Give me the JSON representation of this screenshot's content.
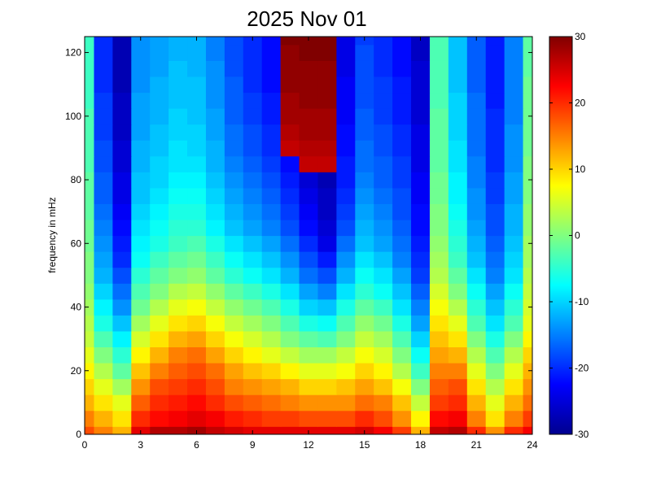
{
  "chart_data": {
    "type": "heatmap",
    "title": "2025 Nov 01",
    "xlabel": "",
    "ylabel": "frequency in mHz",
    "xlim": [
      0,
      24
    ],
    "ylim": [
      0,
      125
    ],
    "x_ticks": [
      "0",
      "3",
      "6",
      "9",
      "12",
      "15",
      "18",
      "21",
      "24"
    ],
    "x_tick_values": [
      0,
      3,
      6,
      9,
      12,
      15,
      18,
      21,
      24
    ],
    "y_ticks": [
      "0",
      "20",
      "40",
      "60",
      "80",
      "100",
      "120"
    ],
    "y_tick_values": [
      0,
      20,
      40,
      60,
      80,
      100,
      120
    ],
    "colorbar": {
      "colormap": "jet",
      "range": [
        -30,
        30
      ],
      "ticks": [
        "30",
        "20",
        "10",
        "0",
        "-10",
        "-20",
        "-30"
      ],
      "tick_values": [
        30,
        20,
        10,
        0,
        -10,
        -20,
        -30
      ]
    },
    "x": [
      0,
      1,
      2,
      3,
      4,
      5,
      6,
      7,
      8,
      9,
      10,
      11,
      12,
      13,
      14,
      15,
      16,
      17,
      18,
      19,
      20,
      21,
      22,
      23,
      24
    ],
    "y": [
      0,
      5,
      10,
      15,
      20,
      25,
      30,
      35,
      40,
      45,
      50,
      55,
      60,
      65,
      70,
      75,
      80,
      85,
      90,
      95,
      100,
      105,
      110,
      115,
      120,
      125
    ],
    "z": [
      [
        18,
        15,
        12,
        24,
        27,
        27,
        28,
        26,
        25,
        24,
        24,
        24,
        24,
        24,
        24,
        25,
        23,
        19,
        12,
        26,
        27,
        20,
        14,
        20,
        23
      ],
      [
        15,
        12,
        9,
        20,
        22,
        23,
        24,
        23,
        21,
        20,
        19,
        19,
        18,
        18,
        18,
        20,
        18,
        14,
        8,
        22,
        23,
        15,
        9,
        15,
        19
      ],
      [
        12,
        9,
        6,
        17,
        20,
        21,
        22,
        20,
        18,
        17,
        16,
        15,
        14,
        14,
        14,
        16,
        15,
        11,
        4,
        19,
        20,
        12,
        6,
        12,
        16
      ],
      [
        10,
        6,
        2,
        14,
        18,
        19,
        20,
        18,
        15,
        14,
        13,
        12,
        10,
        10,
        11,
        13,
        11,
        7,
        0,
        17,
        18,
        9,
        3,
        9,
        14
      ],
      [
        8,
        3,
        -2,
        11,
        15,
        17,
        18,
        16,
        13,
        11,
        10,
        8,
        6,
        6,
        7,
        10,
        8,
        3,
        -4,
        15,
        15,
        6,
        0,
        6,
        12
      ],
      [
        6,
        0,
        -5,
        8,
        12,
        15,
        16,
        13,
        10,
        8,
        6,
        4,
        2,
        2,
        4,
        7,
        5,
        0,
        -7,
        13,
        12,
        3,
        -3,
        3,
        10
      ],
      [
        4,
        -3,
        -8,
        5,
        9,
        12,
        13,
        10,
        7,
        5,
        3,
        0,
        -2,
        -3,
        0,
        4,
        2,
        -3,
        -10,
        11,
        9,
        0,
        -6,
        0,
        8
      ],
      [
        3,
        -6,
        -11,
        2,
        6,
        9,
        10,
        7,
        4,
        2,
        0,
        -3,
        -6,
        -7,
        -3,
        1,
        -1,
        -6,
        -13,
        9,
        6,
        -3,
        -9,
        -3,
        6
      ],
      [
        2,
        -8,
        -14,
        -1,
        3,
        6,
        7,
        4,
        1,
        -1,
        -3,
        -6,
        -10,
        -11,
        -6,
        -2,
        -4,
        -9,
        -15,
        7,
        3,
        -5,
        -11,
        -5,
        5
      ],
      [
        1,
        -10,
        -16,
        -3,
        0,
        3,
        4,
        1,
        -2,
        -4,
        -6,
        -9,
        -13,
        -15,
        -9,
        -5,
        -7,
        -11,
        -17,
        5,
        0,
        -7,
        -13,
        -7,
        4
      ],
      [
        0,
        -12,
        -18,
        -5,
        -2,
        0,
        1,
        -2,
        -5,
        -7,
        -9,
        -12,
        -16,
        -18,
        -12,
        -7,
        -9,
        -13,
        -19,
        3,
        -2,
        -9,
        -15,
        -9,
        3
      ],
      [
        0,
        -13,
        -20,
        -7,
        -4,
        -2,
        -1,
        -4,
        -7,
        -9,
        -11,
        -14,
        -18,
        -21,
        -14,
        -9,
        -11,
        -15,
        -20,
        2,
        -4,
        -11,
        -16,
        -10,
        2
      ],
      [
        -1,
        -14,
        -21,
        -8,
        -6,
        -4,
        -3,
        -6,
        -9,
        -11,
        -13,
        -16,
        -20,
        -24,
        -16,
        -11,
        -13,
        -16,
        -21,
        1,
        -5,
        -12,
        -17,
        -11,
        2
      ],
      [
        -1,
        -15,
        -22,
        -9,
        -7,
        -5,
        -5,
        -8,
        -11,
        -13,
        -15,
        -18,
        -22,
        -25,
        -18,
        -12,
        -14,
        -17,
        -22,
        0,
        -6,
        -13,
        -18,
        -12,
        1
      ],
      [
        -2,
        -16,
        -23,
        -10,
        -8,
        -6,
        -6,
        -9,
        -12,
        -14,
        -16,
        -19,
        -23,
        -26,
        -19,
        -13,
        -15,
        -18,
        -22,
        0,
        -7,
        -14,
        -18,
        -12,
        1
      ],
      [
        -2,
        -17,
        -24,
        -11,
        -9,
        -7,
        -7,
        -10,
        -13,
        -15,
        -17,
        -20,
        -24,
        -26,
        -20,
        -14,
        -16,
        -18,
        -23,
        -1,
        -8,
        -14,
        -19,
        -13,
        0
      ],
      [
        -2,
        -17,
        -24,
        -11,
        -10,
        -8,
        -8,
        -11,
        -14,
        -16,
        -18,
        -21,
        -25,
        -27,
        -21,
        -15,
        -17,
        -19,
        -23,
        -1,
        -8,
        -15,
        -19,
        -13,
        0
      ],
      [
        -3,
        -18,
        -25,
        -12,
        -10,
        -9,
        -9,
        -12,
        -15,
        -17,
        -19,
        -22,
        26,
        26,
        -21,
        -16,
        -17,
        -19,
        -24,
        -2,
        -9,
        -15,
        -20,
        -14,
        0
      ],
      [
        -3,
        -18,
        -25,
        -12,
        -11,
        -9,
        -10,
        -12,
        -16,
        -18,
        -20,
        26,
        27,
        27,
        -22,
        -16,
        -18,
        -20,
        -24,
        -2,
        -9,
        -16,
        -20,
        -14,
        -1
      ],
      [
        -3,
        -19,
        -26,
        -13,
        -11,
        -10,
        -10,
        -13,
        -16,
        -18,
        -20,
        27,
        28,
        28,
        -22,
        -17,
        -18,
        -20,
        -24,
        -2,
        -10,
        -16,
        -20,
        -14,
        -1
      ],
      [
        -3,
        -19,
        -26,
        -13,
        -12,
        -10,
        -11,
        -13,
        -17,
        -19,
        -21,
        28,
        28,
        28,
        -23,
        -17,
        -19,
        -21,
        -25,
        -2,
        -10,
        -16,
        -20,
        -15,
        -1
      ],
      [
        -4,
        -19,
        -26,
        -13,
        -12,
        -11,
        -11,
        -14,
        -17,
        -19,
        -21,
        28,
        29,
        29,
        -23,
        -18,
        -19,
        -21,
        -25,
        -3,
        -10,
        -16,
        -21,
        -15,
        -1
      ],
      [
        -4,
        -20,
        -27,
        -14,
        -12,
        -11,
        -11,
        -14,
        -17,
        -20,
        -22,
        29,
        29,
        29,
        -23,
        -18,
        -19,
        -21,
        -25,
        -3,
        -11,
        -17,
        -21,
        -15,
        -1
      ],
      [
        -4,
        -20,
        -27,
        -14,
        -13,
        -11,
        -12,
        -14,
        -18,
        -20,
        -22,
        29,
        29,
        29,
        -24,
        -18,
        -20,
        -22,
        -25,
        -3,
        -11,
        -17,
        -21,
        -15,
        -2
      ],
      [
        -4,
        -20,
        -27,
        -14,
        -13,
        -12,
        -12,
        -15,
        -18,
        -20,
        -22,
        29,
        30,
        30,
        -24,
        -18,
        -20,
        -22,
        -26,
        -3,
        -11,
        -17,
        -21,
        -15,
        -2
      ],
      [
        -4,
        -20,
        -27,
        -14,
        -13,
        -12,
        -12,
        -15,
        -18,
        -20,
        -22,
        30,
        30,
        30,
        -24,
        -19,
        -20,
        -22,
        -26,
        -3,
        -11,
        -17,
        -21,
        -15,
        -2
      ]
    ]
  }
}
